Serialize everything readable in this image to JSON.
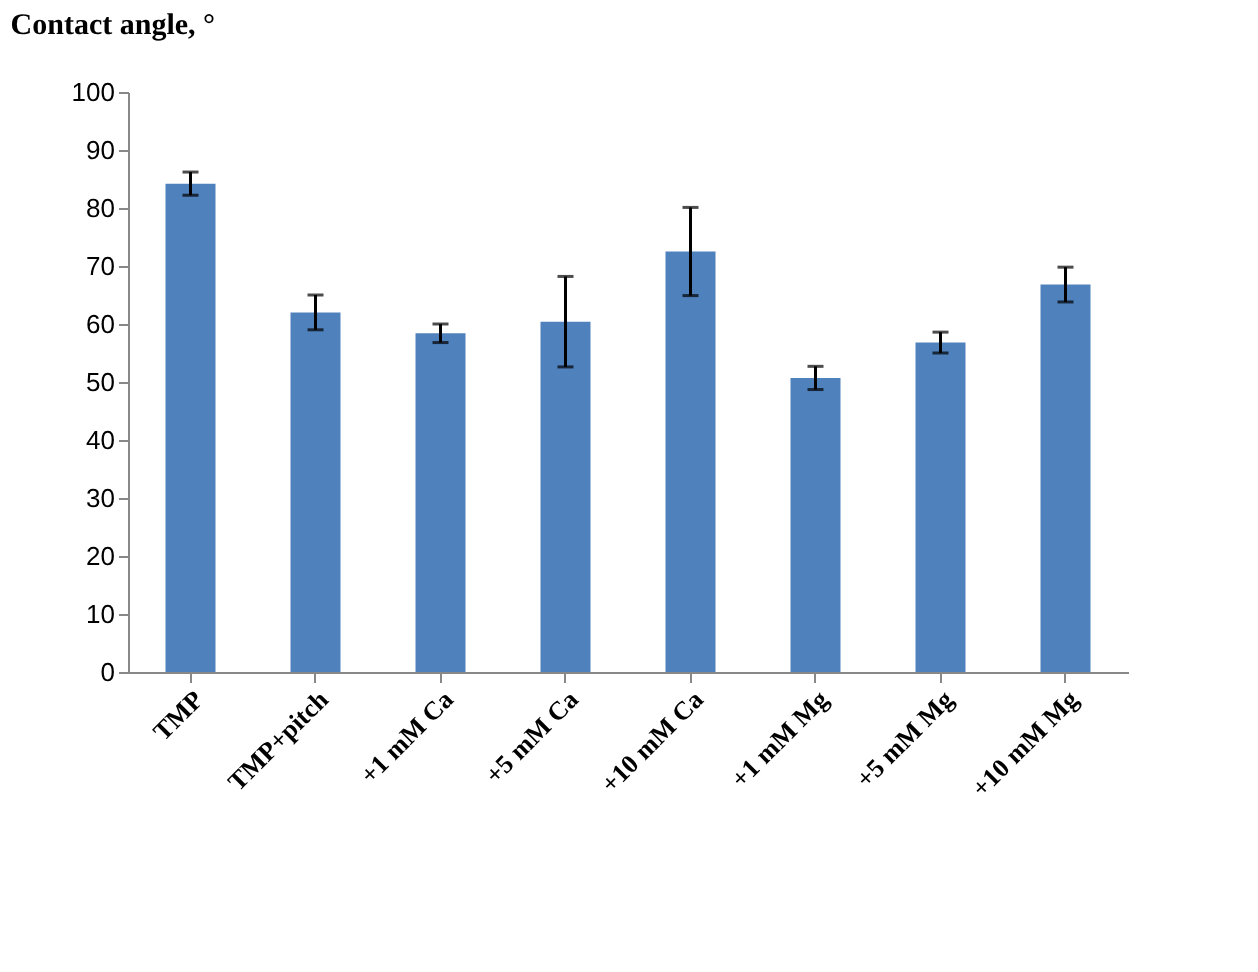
{
  "chart_data": {
    "type": "bar",
    "ylabel": "Contact angle, °",
    "categories": [
      "TMP",
      "TMP+pitch",
      "+1 mM Ca",
      "+5 mM Ca",
      "+10 mM Ca",
      "+1 mM Mg",
      "+5 mM Mg",
      "+10 mM Mg"
    ],
    "values": [
      84.2,
      62.0,
      58.4,
      60.4,
      72.5,
      50.7,
      56.8,
      66.8
    ],
    "errors": [
      2,
      3,
      1.6,
      7.8,
      7.6,
      2,
      1.8,
      3
    ],
    "color": "#4f81bd",
    "ylim": [
      0,
      100
    ],
    "yticks": [
      0,
      10,
      20,
      30,
      40,
      50,
      60,
      70,
      80,
      90,
      100
    ],
    "grid": false
  }
}
